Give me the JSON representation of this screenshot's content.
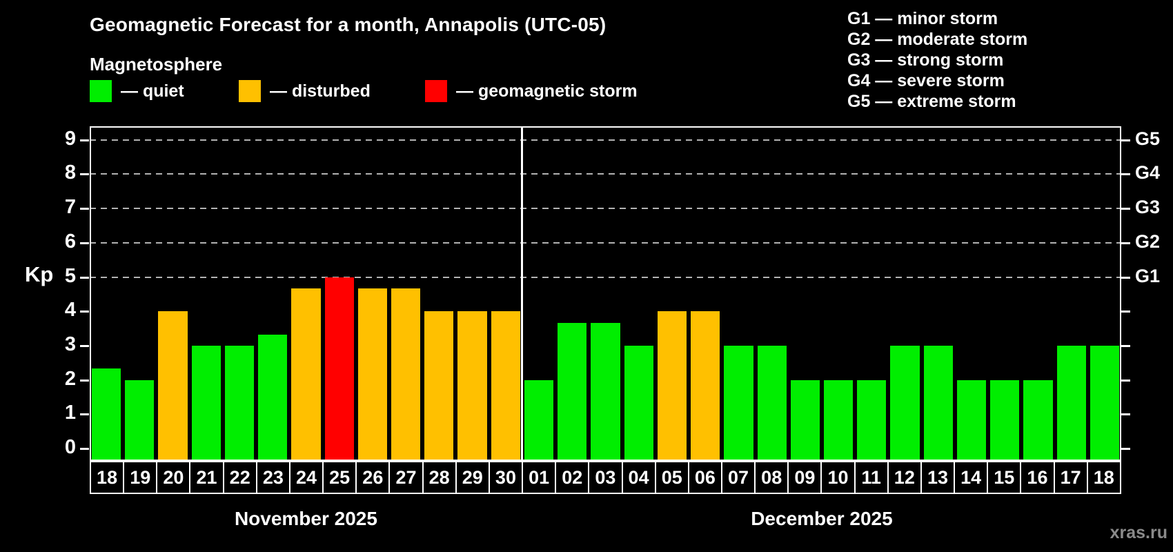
{
  "title": "Geomagnetic Forecast for a month, Annapolis (UTC-05)",
  "subtitle": "Magnetosphere",
  "legend": {
    "items": [
      {
        "status": "quiet",
        "label": "— quiet"
      },
      {
        "status": "disturbed",
        "label": "— disturbed"
      },
      {
        "status": "storm",
        "label": "— geomagnetic storm"
      }
    ]
  },
  "g_legend": [
    "G1 — minor storm",
    "G2 — moderate storm",
    "G3 — strong storm",
    "G4 — severe storm",
    "G5 — extreme storm"
  ],
  "watermark": "xras.ru",
  "colors": {
    "quiet": "#00ee00",
    "disturbed": "#ffc000",
    "storm": "#ff0000",
    "grid": "#b3b3b3",
    "axis": "#ffffff",
    "watermark": "#8a8a8a"
  },
  "chart_data": {
    "type": "bar",
    "title": "Geomagnetic Forecast for a month, Annapolis (UTC-05)",
    "ylabel": "Kp",
    "ylim": [
      0,
      9.5
    ],
    "yticks": [
      0,
      1,
      2,
      3,
      4,
      5,
      6,
      7,
      8,
      9
    ],
    "gridlines": [
      5,
      6,
      7,
      8,
      9
    ],
    "grid_style": "dashed",
    "legend_position": "top-left",
    "right_axis": [
      {
        "kp": 5,
        "label": "G1"
      },
      {
        "kp": 6,
        "label": "G2"
      },
      {
        "kp": 7,
        "label": "G3"
      },
      {
        "kp": 8,
        "label": "G4"
      },
      {
        "kp": 9,
        "label": "G5"
      }
    ],
    "months": [
      {
        "label": "November 2025",
        "days": [
          {
            "day": "18",
            "kp": 2.33,
            "status": "quiet"
          },
          {
            "day": "19",
            "kp": 2.0,
            "status": "quiet"
          },
          {
            "day": "20",
            "kp": 4.0,
            "status": "disturbed"
          },
          {
            "day": "21",
            "kp": 3.0,
            "status": "quiet"
          },
          {
            "day": "22",
            "kp": 3.0,
            "status": "quiet"
          },
          {
            "day": "23",
            "kp": 3.33,
            "status": "quiet"
          },
          {
            "day": "24",
            "kp": 4.67,
            "status": "disturbed"
          },
          {
            "day": "25",
            "kp": 5.0,
            "status": "storm"
          },
          {
            "day": "26",
            "kp": 4.67,
            "status": "disturbed"
          },
          {
            "day": "27",
            "kp": 4.67,
            "status": "disturbed"
          },
          {
            "day": "28",
            "kp": 4.0,
            "status": "disturbed"
          },
          {
            "day": "29",
            "kp": 4.0,
            "status": "disturbed"
          },
          {
            "day": "30",
            "kp": 4.0,
            "status": "disturbed"
          }
        ]
      },
      {
        "label": "December 2025",
        "days": [
          {
            "day": "01",
            "kp": 2.0,
            "status": "quiet"
          },
          {
            "day": "02",
            "kp": 3.67,
            "status": "quiet"
          },
          {
            "day": "03",
            "kp": 3.67,
            "status": "quiet"
          },
          {
            "day": "04",
            "kp": 3.0,
            "status": "quiet"
          },
          {
            "day": "05",
            "kp": 4.0,
            "status": "disturbed"
          },
          {
            "day": "06",
            "kp": 4.0,
            "status": "disturbed"
          },
          {
            "day": "07",
            "kp": 3.0,
            "status": "quiet"
          },
          {
            "day": "08",
            "kp": 3.0,
            "status": "quiet"
          },
          {
            "day": "09",
            "kp": 2.0,
            "status": "quiet"
          },
          {
            "day": "10",
            "kp": 2.0,
            "status": "quiet"
          },
          {
            "day": "11",
            "kp": 2.0,
            "status": "quiet"
          },
          {
            "day": "12",
            "kp": 3.0,
            "status": "quiet"
          },
          {
            "day": "13",
            "kp": 3.0,
            "status": "quiet"
          },
          {
            "day": "14",
            "kp": 2.0,
            "status": "quiet"
          },
          {
            "day": "15",
            "kp": 2.0,
            "status": "quiet"
          },
          {
            "day": "16",
            "kp": 2.0,
            "status": "quiet"
          },
          {
            "day": "17",
            "kp": 3.0,
            "status": "quiet"
          },
          {
            "day": "18",
            "kp": 3.0,
            "status": "quiet"
          }
        ]
      }
    ]
  }
}
